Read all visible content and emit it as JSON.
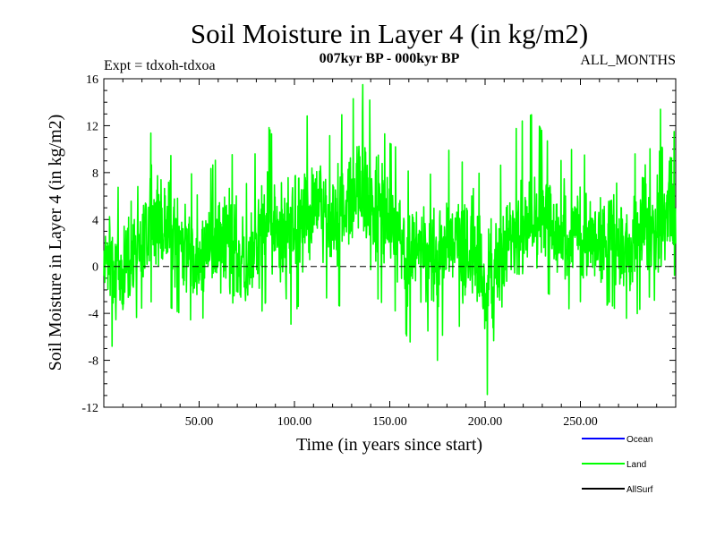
{
  "chart_data": {
    "type": "line",
    "title": "Soil Moisture in Layer 4 (in kg/m2)",
    "subtitle_left": "Expt = tdxoh-tdxoa",
    "subtitle_center": "007kyr BP - 000kyr BP",
    "subtitle_right": "ALL_MONTHS",
    "xlabel": "Time (in years since start)",
    "ylabel": "Soil Moisture in Layer 4 (in kg/m2)",
    "xlim": [
      0,
      300
    ],
    "ylim": [
      -12,
      16
    ],
    "x_ticks": [
      {
        "value": 50,
        "label": "50.00"
      },
      {
        "value": 100,
        "label": "100.00"
      },
      {
        "value": 150,
        "label": "150.00"
      },
      {
        "value": 200,
        "label": "200.00"
      },
      {
        "value": 250,
        "label": "250.00"
      }
    ],
    "y_ticks": [
      {
        "value": -12,
        "label": "-12"
      },
      {
        "value": -8,
        "label": "-8"
      },
      {
        "value": -4,
        "label": "-4"
      },
      {
        "value": 0,
        "label": "0"
      },
      {
        "value": 4,
        "label": "4"
      },
      {
        "value": 8,
        "label": "8"
      },
      {
        "value": 12,
        "label": "12"
      },
      {
        "value": 16,
        "label": "16"
      }
    ],
    "zero_line": true,
    "legend_position": "bottom-right",
    "legend": [
      {
        "label": "Ocean",
        "color": "#0000ff"
      },
      {
        "label": "Land",
        "color": "#00ff00"
      },
      {
        "label": "AllSurf",
        "color": "#000000"
      }
    ],
    "series": [
      {
        "name": "Land",
        "color": "#00ff00",
        "x": [
          0,
          5,
          10,
          15,
          20,
          25,
          30,
          35,
          40,
          45,
          50,
          55,
          60,
          65,
          70,
          75,
          80,
          85,
          90,
          95,
          100,
          105,
          110,
          115,
          120,
          125,
          130,
          135,
          140,
          145,
          150,
          155,
          160,
          165,
          170,
          175,
          180,
          185,
          190,
          195,
          200,
          205,
          210,
          215,
          220,
          225,
          230,
          235,
          240,
          245,
          250,
          255,
          260,
          265,
          270,
          275,
          280,
          285,
          290,
          295,
          300
        ],
        "y": [
          1.5,
          0.5,
          -1.5,
          1.5,
          2.5,
          4,
          3,
          3,
          2,
          1.5,
          0.5,
          2,
          1.5,
          2.5,
          1,
          0,
          1.5,
          3.5,
          3,
          2,
          3.5,
          4.5,
          5,
          4.5,
          4,
          4.5,
          5.5,
          6,
          5,
          4.5,
          4,
          3,
          1,
          1.5,
          1.5,
          0.5,
          3,
          2.5,
          1,
          1.5,
          -2,
          0,
          1,
          2.5,
          3,
          3.5,
          4,
          3.5,
          2.5,
          3,
          3,
          2.5,
          2,
          3,
          2,
          0.5,
          1.5,
          3.5,
          3,
          4,
          3
        ],
        "min": [
          -5.5,
          -7,
          -6.5,
          -5,
          -3.5,
          -3,
          -3,
          -3.5,
          -4,
          -4.5,
          -5,
          -3.5,
          -4.5,
          -6,
          -6,
          -6.5,
          -5,
          -3,
          -4.5,
          -6.5,
          -4,
          -2.5,
          -2,
          -2.5,
          -3,
          -3.5,
          -2,
          -1,
          -2,
          -3,
          -3.5,
          -4,
          -6.5,
          -6,
          -5.5,
          -8,
          -4,
          -4.5,
          -6.5,
          -6,
          -11.5,
          -9,
          -5,
          -3.5,
          -3,
          -2.5,
          -2,
          -2.5,
          -4,
          -3.5,
          -3,
          -4,
          -4.5,
          -3,
          -4,
          -4.5,
          -4,
          -2.5,
          -3,
          -2,
          -3.5
        ],
        "max": [
          6,
          6.5,
          7,
          8.5,
          9.5,
          11.5,
          10,
          9.5,
          8,
          8,
          7.5,
          8,
          9.5,
          10,
          9,
          7,
          10,
          12.5,
          10.5,
          10,
          14.5,
          13,
          12.5,
          11.5,
          11,
          13,
          14,
          15.8,
          14,
          12,
          10.5,
          10,
          8,
          8.5,
          8,
          7.5,
          10,
          9.5,
          8.5,
          8.5,
          7,
          8,
          9,
          11.5,
          12.5,
          13,
          11.5,
          10,
          9,
          10,
          9.5,
          9.5,
          8.5,
          10,
          8.5,
          8.5,
          10,
          15,
          13,
          14,
          11
        ]
      },
      {
        "name": "Ocean",
        "color": "#0000ff",
        "x": [],
        "y": []
      },
      {
        "name": "AllSurf",
        "color": "#000000",
        "x": [],
        "y": []
      }
    ]
  }
}
